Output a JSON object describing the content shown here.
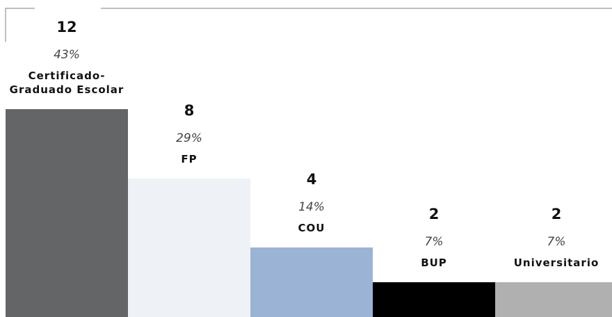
{
  "chart_data": {
    "type": "bar",
    "categories": [
      "Certificado-Graduado Escolar",
      "FP",
      "COU",
      "BUP",
      "Universitario"
    ],
    "values": [
      12,
      8,
      4,
      2,
      2
    ],
    "percent_labels": [
      "43%",
      "29%",
      "14%",
      "7%",
      "7%"
    ],
    "colors": [
      "#646566",
      "#eef2f7",
      "#9bb3d5",
      "#000000",
      "#b0b0b0"
    ]
  }
}
